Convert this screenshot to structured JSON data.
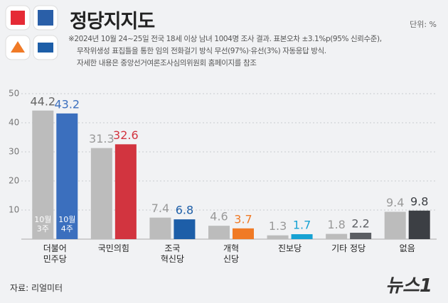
{
  "title": "정당지지도",
  "unit": "단위: %",
  "notes": [
    "※2024년 10월 24~25일 전국 18세 이상 남녀 1004명 조사 결과. 표본오차 ±3.1%p(95% 신뢰수준),",
    "무작위생성 표집틀을 통한 임의 전화걸기 방식 무선(97%)·유선(3%) 자동응답 방식.",
    "자세한 내용은 중앙선거여론조사심의위원회 홈페이지를 참조"
  ],
  "source": "자료: 리얼미터",
  "logo": "뉴스1",
  "chart_data": {
    "type": "bar",
    "categories": [
      "더불어\n민주당",
      "국민의힘",
      "조국\n혁신당",
      "개혁\n신당",
      "진보당",
      "기타 정당",
      "없음"
    ],
    "series": [
      {
        "name": "10월\n3주",
        "colors": [
          "#bcbcbc",
          "#bcbcbc",
          "#bcbcbc",
          "#bcbcbc",
          "#bcbcbc",
          "#bcbcbc",
          "#bcbcbc"
        ],
        "values": [
          44.2,
          31.3,
          7.4,
          4.6,
          1.3,
          1.8,
          9.4
        ]
      },
      {
        "name": "10월\n4주",
        "colors": [
          "#3b6fbe",
          "#d2343f",
          "#1d5ea8",
          "#f07a26",
          "#17a2d3",
          "#5b5e63",
          "#3c3f44"
        ],
        "values": [
          43.2,
          32.6,
          6.8,
          3.7,
          1.7,
          2.2,
          9.8
        ]
      }
    ],
    "ylim": [
      0,
      50
    ],
    "yticks": [
      10,
      20,
      30,
      40,
      50
    ],
    "grid": true
  }
}
